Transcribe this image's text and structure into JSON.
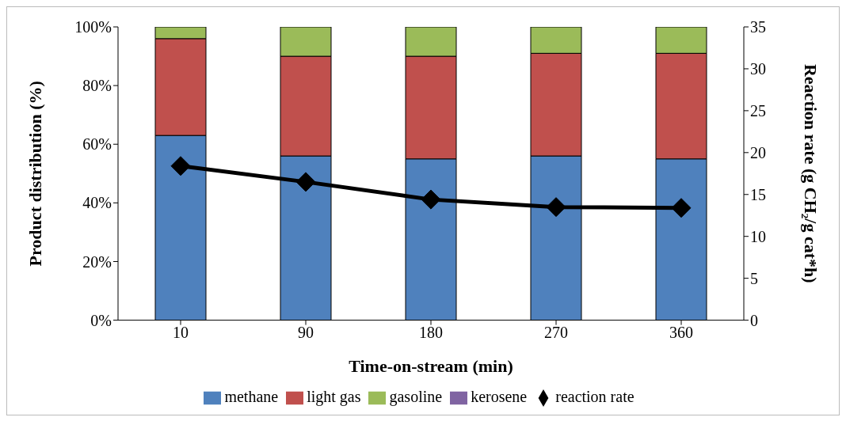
{
  "chart_data": {
    "type": "bar",
    "stacked": true,
    "xlabel": "Time-on-stream (min)",
    "ylabel": "Product distribution (%)",
    "y2label": "Reaction rate (g CH₂/g cat*h)",
    "categories": [
      "10",
      "90",
      "180",
      "270",
      "360"
    ],
    "series": [
      {
        "name": "methane",
        "color": "#4f81bd",
        "values": [
          63,
          56,
          55,
          56,
          55
        ]
      },
      {
        "name": "light gas",
        "color": "#c0504d",
        "values": [
          33,
          34,
          35,
          35,
          36
        ]
      },
      {
        "name": "gasoline",
        "color": "#9bbb59",
        "values": [
          4,
          10,
          10,
          9,
          9
        ]
      },
      {
        "name": "kerosene",
        "color": "#8064a2",
        "values": [
          0,
          0,
          0,
          0,
          0
        ]
      },
      {
        "name": "reaction rate",
        "type": "line",
        "axis": "y2",
        "color": "#000000",
        "marker": "diamond",
        "line_style": "solid",
        "values": [
          18.4,
          16.5,
          14.4,
          13.5,
          13.4
        ]
      }
    ],
    "ylim": [
      0,
      100
    ],
    "yticks": [
      {
        "value": 0,
        "label": "0%"
      },
      {
        "value": 20,
        "label": "20%"
      },
      {
        "value": 40,
        "label": "40%"
      },
      {
        "value": 60,
        "label": "60%"
      },
      {
        "value": 80,
        "label": "80%"
      },
      {
        "value": 100,
        "label": "100%"
      }
    ],
    "y2lim": [
      0,
      35
    ],
    "y2ticks": [
      0,
      5,
      10,
      15,
      20,
      25,
      30,
      35
    ],
    "legend": "bottom"
  }
}
